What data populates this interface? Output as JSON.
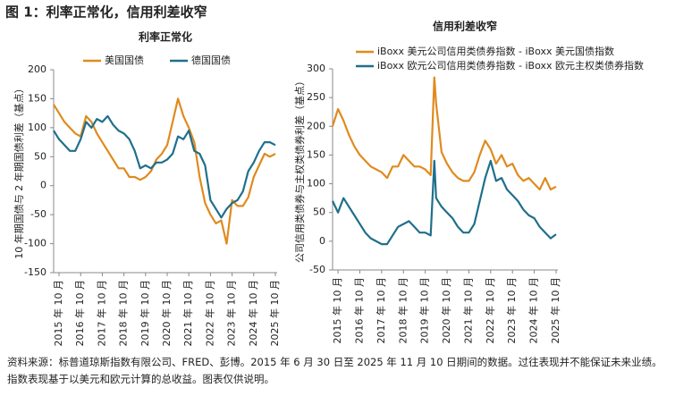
{
  "title": "图 1：利率正常化，信用利差收窄",
  "source": "资料来源：标普道琼斯指数有限公司、FRED、彭博。2015 年 6 月 30 日至 2025 年 11 月 10 日期间的数据。过往表现并不能保证未来业绩。指数表现基于以美元和欧元计算的总收益。图表仅供说明。",
  "chart_data": [
    {
      "type": "line",
      "title": "利率正常化",
      "ylabel": "10 年期国债与 2 年期国债利差（基点）",
      "x": [
        "2015-07",
        "2015-10",
        "2016-01",
        "2016-04",
        "2016-07",
        "2016-10",
        "2017-01",
        "2017-04",
        "2017-07",
        "2017-10",
        "2018-01",
        "2018-04",
        "2018-07",
        "2018-10",
        "2019-01",
        "2019-04",
        "2019-07",
        "2019-10",
        "2020-01",
        "2020-04",
        "2020-07",
        "2020-10",
        "2021-01",
        "2021-04",
        "2021-07",
        "2021-10",
        "2022-01",
        "2022-04",
        "2022-07",
        "2022-10",
        "2023-01",
        "2023-04",
        "2023-07",
        "2023-10",
        "2024-01",
        "2024-04",
        "2024-07",
        "2024-10",
        "2025-01",
        "2025-04",
        "2025-07",
        "2025-10"
      ],
      "series": [
        {
          "name": "美国国债",
          "color": "#e08a1e",
          "values": [
            140,
            125,
            110,
            100,
            90,
            85,
            120,
            110,
            90,
            75,
            60,
            45,
            30,
            30,
            15,
            15,
            10,
            15,
            25,
            45,
            55,
            70,
            110,
            150,
            120,
            100,
            75,
            15,
            -30,
            -50,
            -65,
            -60,
            -100,
            -25,
            -35,
            -35,
            -20,
            15,
            35,
            55,
            50,
            55
          ]
        },
        {
          "name": "德国国债",
          "color": "#1f6f8b",
          "values": [
            95,
            80,
            70,
            60,
            60,
            80,
            110,
            100,
            115,
            110,
            120,
            105,
            95,
            90,
            80,
            60,
            30,
            35,
            30,
            40,
            40,
            45,
            55,
            85,
            80,
            95,
            60,
            55,
            35,
            -25,
            -40,
            -55,
            -40,
            -30,
            -25,
            -10,
            25,
            40,
            60,
            75,
            75,
            70
          ]
        }
      ],
      "xlim": [
        "2015-07",
        "2025-11"
      ],
      "xticks": [
        {
          "value": "2015-10",
          "label": "2015 年 10 月"
        },
        {
          "value": "2016-10",
          "label": "2016 年 10 月"
        },
        {
          "value": "2017-10",
          "label": "2017 年 10 月"
        },
        {
          "value": "2018-10",
          "label": "2018 年 10 月"
        },
        {
          "value": "2019-10",
          "label": "2019 年 10 月"
        },
        {
          "value": "2020-10",
          "label": "2020 年 10 月"
        },
        {
          "value": "2021-10",
          "label": "2021 年 10 月"
        },
        {
          "value": "2022-10",
          "label": "2022 年 10 月"
        },
        {
          "value": "2023-10",
          "label": "2023 年 10 月"
        },
        {
          "value": "2024-10",
          "label": "2024 年 10 月"
        },
        {
          "value": "2025-10",
          "label": "2025 年 10 月"
        }
      ],
      "ylim": [
        -150,
        200
      ],
      "yticks": [
        -150,
        -100,
        -50,
        0,
        50,
        100,
        150,
        200
      ]
    },
    {
      "type": "line",
      "title": "信用利差收窄",
      "ylabel": "公司信用类债券与主权类债券利差（基点）",
      "x": [
        "2015-07",
        "2015-10",
        "2016-01",
        "2016-04",
        "2016-07",
        "2016-10",
        "2017-01",
        "2017-04",
        "2017-07",
        "2017-10",
        "2018-01",
        "2018-04",
        "2018-07",
        "2018-10",
        "2019-01",
        "2019-04",
        "2019-07",
        "2019-10",
        "2020-01",
        "2020-03",
        "2020-04",
        "2020-07",
        "2020-10",
        "2021-01",
        "2021-04",
        "2021-07",
        "2021-10",
        "2022-01",
        "2022-04",
        "2022-07",
        "2022-10",
        "2023-01",
        "2023-04",
        "2023-07",
        "2023-10",
        "2024-01",
        "2024-04",
        "2024-07",
        "2024-10",
        "2025-01",
        "2025-04",
        "2025-07",
        "2025-10"
      ],
      "series": [
        {
          "name": "iBoxx 美元公司信用类债券指数 - iBoxx 美元国债指数",
          "color": "#e08a1e",
          "values": [
            200,
            230,
            210,
            185,
            165,
            150,
            140,
            130,
            125,
            120,
            110,
            130,
            130,
            150,
            140,
            130,
            130,
            125,
            115,
            285,
            240,
            155,
            135,
            120,
            110,
            105,
            105,
            120,
            150,
            175,
            160,
            135,
            150,
            130,
            135,
            115,
            105,
            110,
            100,
            90,
            110,
            90,
            95
          ]
        },
        {
          "name": "iBoxx 欧元公司信用类债券指数 - iBoxx 欧元主权类债券指数",
          "color": "#1f6f8b",
          "values": [
            70,
            50,
            75,
            60,
            45,
            30,
            15,
            5,
            0,
            -5,
            -5,
            10,
            25,
            30,
            35,
            25,
            15,
            15,
            10,
            140,
            75,
            60,
            50,
            40,
            25,
            15,
            15,
            30,
            70,
            110,
            140,
            105,
            110,
            90,
            80,
            70,
            55,
            45,
            40,
            25,
            15,
            5,
            12
          ]
        }
      ],
      "xlim": [
        "2015-07",
        "2025-11"
      ],
      "xticks": [
        {
          "value": "2015-10",
          "label": "2015 年 10 月"
        },
        {
          "value": "2016-10",
          "label": "2016 年 10 月"
        },
        {
          "value": "2017-10",
          "label": "2017 年 10 月"
        },
        {
          "value": "2018-10",
          "label": "2018 年 10 月"
        },
        {
          "value": "2019-10",
          "label": "2019 年 10 月"
        },
        {
          "value": "2020-10",
          "label": "2020 年 10 月"
        },
        {
          "value": "2021-10",
          "label": "2021 年 10 月"
        },
        {
          "value": "2022-10",
          "label": "2022 年 10 月"
        },
        {
          "value": "2023-10",
          "label": "2023 年 10 月"
        },
        {
          "value": "2024-10",
          "label": "2024 年 10 月"
        },
        {
          "value": "2025-10",
          "label": "2025 年 10 月"
        }
      ],
      "ylim": [
        -50,
        300
      ],
      "yticks": [
        -50,
        0,
        50,
        100,
        150,
        200,
        250,
        300
      ]
    }
  ]
}
